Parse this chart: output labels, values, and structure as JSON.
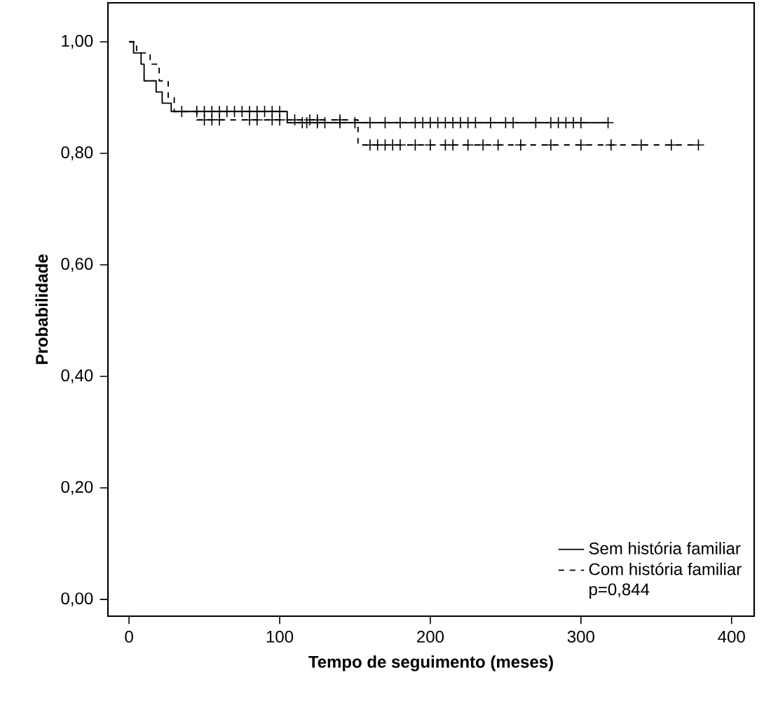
{
  "chart_data": {
    "type": "step",
    "xlabel": "Tempo de seguimento (meses)",
    "ylabel": "Probabilidade",
    "xlim": [
      -14,
      415
    ],
    "ylim": [
      -0.03,
      1.07
    ],
    "xticks": [
      0,
      100,
      200,
      300,
      400
    ],
    "yticks": [
      {
        "value": 0,
        "label": "0,00"
      },
      {
        "value": 0.2,
        "label": "0,20"
      },
      {
        "value": 0.4,
        "label": "0,40"
      },
      {
        "value": 0.6,
        "label": "0,60"
      },
      {
        "value": 0.8,
        "label": "0,80"
      },
      {
        "value": 1,
        "label": "1,00"
      }
    ],
    "grid": false,
    "legend": "bottom right",
    "marker": "none",
    "annotations": [
      "p=0,844"
    ],
    "series": [
      {
        "name": "Sem história familiar",
        "color": "#000000",
        "line_style": "solid",
        "x": [
          0,
          3,
          8,
          10,
          18,
          22,
          28,
          105,
          318
        ],
        "values": [
          1.0,
          0.98,
          0.96,
          0.93,
          0.91,
          0.89,
          0.875,
          0.855,
          0.855
        ]
      },
      {
        "name": "Com história familiar",
        "color": "#000000",
        "line_style": "dashed",
        "x": [
          0,
          5,
          14,
          20,
          26,
          30,
          45,
          152,
          378
        ],
        "values": [
          1.0,
          0.98,
          0.96,
          0.93,
          0.9,
          0.875,
          0.86,
          0.815,
          0.815
        ]
      },
      {
        "type": "scatter",
        "marker": "cross",
        "color": "#000000",
        "x": [
          35,
          45,
          50,
          55,
          60,
          65,
          70,
          75,
          80,
          85,
          90,
          95,
          100,
          115,
          118,
          125,
          130,
          140,
          150,
          160,
          170,
          180,
          190,
          195,
          200,
          205,
          210,
          215,
          220,
          225,
          230,
          240,
          250,
          255,
          270,
          280,
          285,
          290,
          295,
          300,
          318
        ],
        "values": [
          0.875,
          0.875,
          0.875,
          0.875,
          0.875,
          0.875,
          0.875,
          0.875,
          0.875,
          0.875,
          0.875,
          0.875,
          0.875,
          0.855,
          0.855,
          0.855,
          0.855,
          0.855,
          0.855,
          0.855,
          0.855,
          0.855,
          0.855,
          0.855,
          0.855,
          0.855,
          0.855,
          0.855,
          0.855,
          0.855,
          0.855,
          0.855,
          0.855,
          0.855,
          0.855,
          0.855,
          0.855,
          0.855,
          0.855,
          0.855,
          0.855
        ]
      },
      {
        "type": "scatter",
        "marker": "cross",
        "color": "#000000",
        "x": [
          50,
          55,
          60,
          80,
          85,
          95,
          100,
          110,
          120,
          125,
          140,
          160,
          165,
          170,
          175,
          180,
          190,
          200,
          210,
          215,
          225,
          235,
          245,
          260,
          280,
          300,
          320,
          340,
          360,
          378
        ],
        "values": [
          0.86,
          0.86,
          0.86,
          0.86,
          0.86,
          0.86,
          0.86,
          0.86,
          0.86,
          0.86,
          0.86,
          0.815,
          0.815,
          0.815,
          0.815,
          0.815,
          0.815,
          0.815,
          0.815,
          0.815,
          0.815,
          0.815,
          0.815,
          0.815,
          0.815,
          0.815,
          0.815,
          0.815,
          0.815,
          0.815
        ]
      }
    ]
  }
}
